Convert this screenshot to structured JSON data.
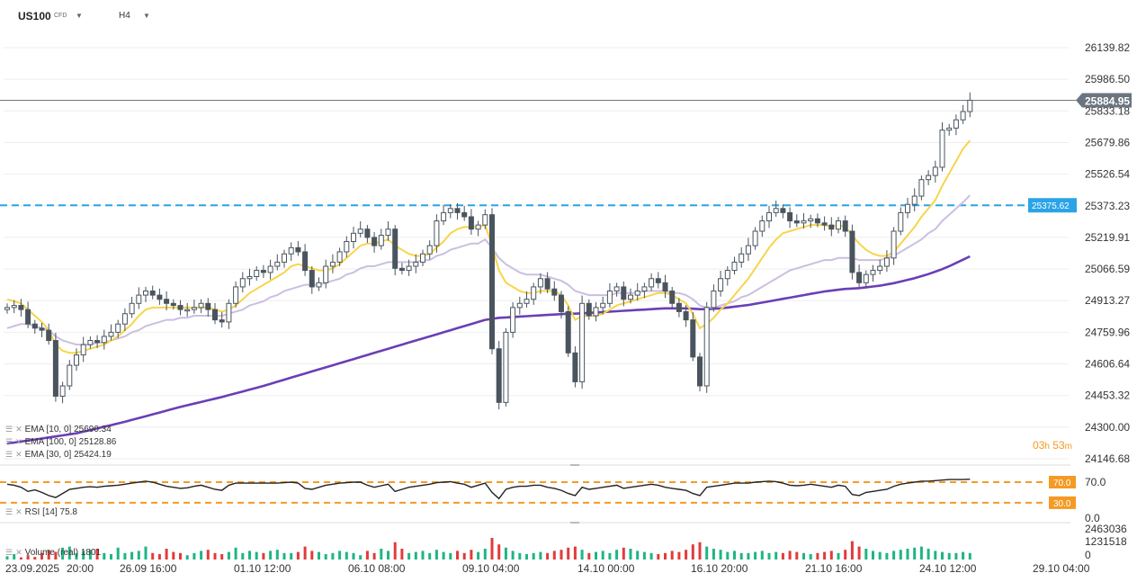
{
  "header": {
    "symbol": "US100",
    "symbol_sub": "CFD",
    "timeframe": "H4"
  },
  "price_axis": {
    "ticks": [
      "26139.82",
      "25986.50",
      "25833.18",
      "25679.86",
      "25526.54",
      "25373.23",
      "25219.91",
      "25066.59",
      "24913.27",
      "24759.96",
      "24606.64",
      "24453.32",
      "24300.00",
      "24146.68"
    ]
  },
  "current_price": {
    "label": "25884.95",
    "value": 25884.95
  },
  "resistance": {
    "label": "25375.62",
    "value": 25375.62
  },
  "indicators": {
    "ema1": "EMA [10, 0] 25690.34",
    "ema2": "EMA [100, 0] 25128.86",
    "ema3": "EMA [30, 0] 25424.19",
    "rsi": "RSI [14] 75.8",
    "volume": "Volume (real) 1801"
  },
  "countdown": {
    "hours": "03",
    "h": "h",
    "minutes": "53",
    "m": "m"
  },
  "rsi_axis": {
    "top": "70.0",
    "bottom": "0.0",
    "upper_level": "70.0",
    "lower_level": "30.0"
  },
  "volume_axis": {
    "max": "2463036",
    "mid": "1231518",
    "zero": "0"
  },
  "time_axis": [
    "23.09.2025",
    "20:00",
    "26.09 16:00",
    "01.10 12:00",
    "06.10 08:00",
    "09.10 04:00",
    "14.10 00:00",
    "16.10 20:00",
    "21.10 16:00",
    "24.10 12:00",
    "29.10 04:00"
  ],
  "colors": {
    "candle": "#4a545e",
    "ema10": "#f7d54a",
    "ema30": "#cbbfe0",
    "ema100": "#6a3fb5",
    "resistance": "#2aa4e6",
    "rsi_levels": "#f59a23",
    "volume_up": "#1fb585",
    "volume_down": "#e23b3b"
  },
  "chart_data": {
    "type": "candlestick",
    "y_scale": [
      24146.68,
      26139.82
    ],
    "closes": [
      24880,
      24890,
      24870,
      24800,
      24780,
      24770,
      24720,
      24450,
      24500,
      24600,
      24650,
      24700,
      24720,
      24710,
      24740,
      24760,
      24800,
      24850,
      24900,
      24940,
      24960,
      24940,
      24920,
      24900,
      24890,
      24870,
      24870,
      24880,
      24900,
      24870,
      24820,
      24810,
      24900,
      24980,
      25020,
      25030,
      25060,
      25050,
      25080,
      25100,
      25140,
      25170,
      25150,
      25060,
      24980,
      25000,
      25080,
      25100,
      25150,
      25200,
      25240,
      25260,
      25220,
      25180,
      25230,
      25260,
      25070,
      25060,
      25080,
      25100,
      25140,
      25180,
      25300,
      25340,
      25360,
      25340,
      25320,
      25260,
      25280,
      25330,
      24680,
      24420,
      24760,
      24880,
      24900,
      24920,
      24980,
      25020,
      24970,
      24940,
      24860,
      24660,
      24520,
      24900,
      24840,
      24880,
      24900,
      24960,
      24980,
      24920,
      24940,
      24960,
      24980,
      25020,
      25000,
      24960,
      24900,
      24860,
      24820,
      24640,
      24500,
      24880,
      24960,
      25020,
      25060,
      25100,
      25140,
      25180,
      25250,
      25300,
      25340,
      25360,
      25340,
      25300,
      25290,
      25300,
      25310,
      25290,
      25280,
      25260,
      25300,
      25250,
      25050,
      25000,
      25040,
      25060,
      25080,
      25120,
      25250,
      25340,
      25380,
      25420,
      25500,
      25520,
      25560,
      25740,
      25750,
      25790,
      25830,
      25885
    ],
    "ema10": [
      24920,
      24910,
      24900,
      24870,
      24840,
      24810,
      24770,
      24700,
      24670,
      24660,
      24660,
      24670,
      24680,
      24690,
      24700,
      24720,
      24740,
      24770,
      24800,
      24840,
      24870,
      24880,
      24880,
      24880,
      24880,
      24880,
      24880,
      24880,
      24880,
      24880,
      24870,
      24860,
      24870,
      24890,
      24920,
      24950,
      24970,
      24990,
      25010,
      25030,
      25050,
      25080,
      25090,
      25080,
      25070,
      25060,
      25060,
      25070,
      25090,
      25120,
      25150,
      25180,
      25190,
      25190,
      25200,
      25210,
      25180,
      25160,
      25140,
      25130,
      25130,
      25140,
      25170,
      25200,
      25240,
      25260,
      25270,
      25270,
      25270,
      25280,
      25180,
      25060,
      25000,
      24980,
      24960,
      24950,
      24950,
      24960,
      24960,
      24960,
      24940,
      24890,
      24820,
      24840,
      24840,
      24840,
      24850,
      24870,
      24890,
      24900,
      24910,
      24920,
      24930,
      24940,
      24950,
      24950,
      24940,
      24920,
      24900,
      24850,
      24780,
      24800,
      24830,
      24870,
      24900,
      24940,
      24980,
      25020,
      25070,
      25120,
      25170,
      25210,
      25240,
      25250,
      25260,
      25270,
      25280,
      25280,
      25280,
      25270,
      25280,
      25270,
      25230,
      25190,
      25160,
      25140,
      25130,
      25130,
      25150,
      25190,
      25230,
      25270,
      25320,
      25360,
      25400,
      25470,
      25530,
      25590,
      25650,
      25690
    ],
    "ema30": [
      24780,
      24790,
      24800,
      24800,
      24790,
      24780,
      24770,
      24740,
      24720,
      24710,
      24700,
      24700,
      24700,
      24710,
      24710,
      24720,
      24730,
      24740,
      24760,
      24770,
      24790,
      24800,
      24810,
      24820,
      24820,
      24830,
      24830,
      24840,
      24840,
      24840,
      24840,
      24840,
      24850,
      24860,
      24870,
      24890,
      24900,
      24910,
      24930,
      24940,
      24960,
      24970,
      24980,
      24990,
      24990,
      24990,
      25000,
      25010,
      25020,
      25040,
      25050,
      25070,
      25080,
      25080,
      25090,
      25100,
      25100,
      25100,
      25100,
      25100,
      25110,
      25110,
      25130,
      25140,
      25160,
      25170,
      25180,
      25190,
      25190,
      25210,
      25170,
      25120,
      25090,
      25070,
      25050,
      25040,
      25040,
      25040,
      25030,
      25020,
      25010,
      24990,
      24960,
      24950,
      24940,
      24940,
      24940,
      24940,
      24950,
      24950,
      24950,
      24950,
      24960,
      24960,
      24960,
      24960,
      24950,
      24950,
      24940,
      24920,
      24890,
      24880,
      24880,
      24890,
      24900,
      24910,
      24930,
      24940,
      24960,
      24980,
      25000,
      25020,
      25040,
      25060,
      25070,
      25080,
      25090,
      25100,
      25110,
      25110,
      25120,
      25120,
      25120,
      25110,
      25110,
      25110,
      25110,
      25120,
      25130,
      25150,
      25170,
      25190,
      25210,
      25240,
      25260,
      25300,
      25330,
      25360,
      25390,
      25424
    ],
    "ema100": [
      24220,
      24225,
      24230,
      24235,
      24240,
      24245,
      24250,
      24255,
      24260,
      24265,
      24270,
      24278,
      24286,
      24294,
      24302,
      24310,
      24318,
      24326,
      24335,
      24344,
      24353,
      24362,
      24371,
      24380,
      24389,
      24398,
      24406,
      24414,
      24422,
      24430,
      24438,
      24446,
      24455,
      24464,
      24473,
      24482,
      24491,
      24500,
      24510,
      24520,
      24530,
      24540,
      24550,
      24560,
      24570,
      24580,
      24590,
      24600,
      24610,
      24620,
      24630,
      24640,
      24650,
      24660,
      24670,
      24680,
      24690,
      24700,
      24710,
      24720,
      24730,
      24740,
      24750,
      24760,
      24770,
      24780,
      24790,
      24800,
      24810,
      24820,
      24825,
      24830,
      24832,
      24834,
      24836,
      24838,
      24840,
      24842,
      24844,
      24846,
      24848,
      24850,
      24850,
      24852,
      24854,
      24856,
      24858,
      24860,
      24862,
      24864,
      24866,
      24868,
      24870,
      24872,
      24874,
      24876,
      24876,
      24876,
      24876,
      24874,
      24872,
      24872,
      24874,
      24876,
      24880,
      24884,
      24888,
      24892,
      24898,
      24904,
      24910,
      24916,
      24922,
      24928,
      24934,
      24940,
      24946,
      24952,
      24958,
      24962,
      24966,
      24970,
      24972,
      24974,
      24978,
      24982,
      24986,
      24992,
      24998,
      25006,
      25014,
      25022,
      25032,
      25042,
      25054,
      25066,
      25080,
      25096,
      25112,
      25128
    ],
    "rsi": [
      66,
      64,
      60,
      52,
      55,
      50,
      44,
      40,
      48,
      56,
      58,
      60,
      61,
      60,
      62,
      63,
      64,
      66,
      68,
      70,
      72,
      70,
      66,
      62,
      60,
      58,
      59,
      62,
      64,
      60,
      56,
      54,
      64,
      68,
      68,
      68,
      68,
      68,
      68,
      68,
      69,
      70,
      68,
      58,
      56,
      60,
      64,
      66,
      68,
      69,
      70,
      70,
      64,
      60,
      63,
      66,
      52,
      56,
      60,
      62,
      64,
      66,
      69,
      70,
      71,
      68,
      66,
      60,
      64,
      68,
      50,
      38,
      56,
      60,
      62,
      62,
      64,
      64,
      60,
      58,
      54,
      48,
      44,
      60,
      56,
      58,
      60,
      62,
      64,
      58,
      60,
      62,
      64,
      66,
      64,
      60,
      58,
      56,
      54,
      48,
      44,
      60,
      62,
      64,
      66,
      68,
      68,
      68,
      70,
      71,
      72,
      71,
      68,
      64,
      63,
      64,
      66,
      64,
      62,
      60,
      64,
      62,
      46,
      44,
      50,
      52,
      54,
      56,
      62,
      66,
      68,
      70,
      72,
      72,
      73,
      74,
      75,
      75,
      75,
      75.8
    ],
    "volume": [
      0.15,
      0.25,
      0.1,
      0.2,
      0.12,
      0.3,
      0.45,
      0.35,
      0.55,
      0.6,
      0.3,
      0.4,
      0.45,
      0.5,
      0.3,
      0.25,
      0.55,
      0.3,
      0.35,
      0.4,
      0.6,
      0.3,
      0.25,
      0.5,
      0.35,
      0.3,
      0.2,
      0.3,
      0.4,
      0.45,
      0.3,
      0.25,
      0.35,
      0.55,
      0.3,
      0.4,
      0.35,
      0.3,
      0.4,
      0.45,
      0.3,
      0.3,
      0.35,
      0.6,
      0.4,
      0.35,
      0.25,
      0.3,
      0.4,
      0.35,
      0.3,
      0.2,
      0.4,
      0.3,
      0.5,
      0.4,
      0.8,
      0.5,
      0.3,
      0.35,
      0.4,
      0.3,
      0.45,
      0.35,
      0.3,
      0.4,
      0.3,
      0.45,
      0.35,
      0.5,
      1.0,
      0.7,
      0.55,
      0.4,
      0.3,
      0.25,
      0.3,
      0.35,
      0.3,
      0.4,
      0.45,
      0.55,
      0.6,
      0.45,
      0.3,
      0.35,
      0.4,
      0.3,
      0.45,
      0.55,
      0.5,
      0.4,
      0.35,
      0.3,
      0.25,
      0.3,
      0.4,
      0.35,
      0.45,
      0.7,
      0.8,
      0.6,
      0.5,
      0.45,
      0.35,
      0.4,
      0.3,
      0.3,
      0.35,
      0.4,
      0.3,
      0.35,
      0.3,
      0.4,
      0.35,
      0.3,
      0.25,
      0.3,
      0.35,
      0.4,
      0.3,
      0.45,
      0.85,
      0.6,
      0.5,
      0.4,
      0.35,
      0.3,
      0.4,
      0.45,
      0.5,
      0.55,
      0.6,
      0.5,
      0.4,
      0.35,
      0.3,
      0.3,
      0.35,
      0.3
    ]
  }
}
